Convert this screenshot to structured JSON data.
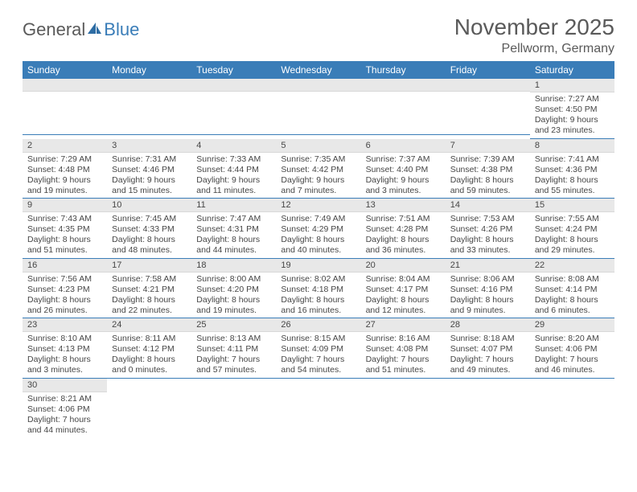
{
  "logo": {
    "text1": "General",
    "text2": "Blue"
  },
  "title": "November 2025",
  "location": "Pellworm, Germany",
  "colors": {
    "header_bg": "#3a7db8",
    "header_text": "#ffffff",
    "daynum_bg": "#e8e8e8",
    "row_divider": "#3a7db8",
    "body_text": "#464646",
    "page_bg": "#ffffff"
  },
  "typography": {
    "title_fontsize": 28,
    "location_fontsize": 16,
    "dayhdr_fontsize": 12,
    "cell_fontsize": 10.5
  },
  "weekdays": [
    "Sunday",
    "Monday",
    "Tuesday",
    "Wednesday",
    "Thursday",
    "Friday",
    "Saturday"
  ],
  "cells": [
    {
      "n": "",
      "sr": "",
      "ss": "",
      "dl": ""
    },
    {
      "n": "",
      "sr": "",
      "ss": "",
      "dl": ""
    },
    {
      "n": "",
      "sr": "",
      "ss": "",
      "dl": ""
    },
    {
      "n": "",
      "sr": "",
      "ss": "",
      "dl": ""
    },
    {
      "n": "",
      "sr": "",
      "ss": "",
      "dl": ""
    },
    {
      "n": "",
      "sr": "",
      "ss": "",
      "dl": ""
    },
    {
      "n": "1",
      "sr": "Sunrise: 7:27 AM",
      "ss": "Sunset: 4:50 PM",
      "dl": "Daylight: 9 hours and 23 minutes."
    },
    {
      "n": "2",
      "sr": "Sunrise: 7:29 AM",
      "ss": "Sunset: 4:48 PM",
      "dl": "Daylight: 9 hours and 19 minutes."
    },
    {
      "n": "3",
      "sr": "Sunrise: 7:31 AM",
      "ss": "Sunset: 4:46 PM",
      "dl": "Daylight: 9 hours and 15 minutes."
    },
    {
      "n": "4",
      "sr": "Sunrise: 7:33 AM",
      "ss": "Sunset: 4:44 PM",
      "dl": "Daylight: 9 hours and 11 minutes."
    },
    {
      "n": "5",
      "sr": "Sunrise: 7:35 AM",
      "ss": "Sunset: 4:42 PM",
      "dl": "Daylight: 9 hours and 7 minutes."
    },
    {
      "n": "6",
      "sr": "Sunrise: 7:37 AM",
      "ss": "Sunset: 4:40 PM",
      "dl": "Daylight: 9 hours and 3 minutes."
    },
    {
      "n": "7",
      "sr": "Sunrise: 7:39 AM",
      "ss": "Sunset: 4:38 PM",
      "dl": "Daylight: 8 hours and 59 minutes."
    },
    {
      "n": "8",
      "sr": "Sunrise: 7:41 AM",
      "ss": "Sunset: 4:36 PM",
      "dl": "Daylight: 8 hours and 55 minutes."
    },
    {
      "n": "9",
      "sr": "Sunrise: 7:43 AM",
      "ss": "Sunset: 4:35 PM",
      "dl": "Daylight: 8 hours and 51 minutes."
    },
    {
      "n": "10",
      "sr": "Sunrise: 7:45 AM",
      "ss": "Sunset: 4:33 PM",
      "dl": "Daylight: 8 hours and 48 minutes."
    },
    {
      "n": "11",
      "sr": "Sunrise: 7:47 AM",
      "ss": "Sunset: 4:31 PM",
      "dl": "Daylight: 8 hours and 44 minutes."
    },
    {
      "n": "12",
      "sr": "Sunrise: 7:49 AM",
      "ss": "Sunset: 4:29 PM",
      "dl": "Daylight: 8 hours and 40 minutes."
    },
    {
      "n": "13",
      "sr": "Sunrise: 7:51 AM",
      "ss": "Sunset: 4:28 PM",
      "dl": "Daylight: 8 hours and 36 minutes."
    },
    {
      "n": "14",
      "sr": "Sunrise: 7:53 AM",
      "ss": "Sunset: 4:26 PM",
      "dl": "Daylight: 8 hours and 33 minutes."
    },
    {
      "n": "15",
      "sr": "Sunrise: 7:55 AM",
      "ss": "Sunset: 4:24 PM",
      "dl": "Daylight: 8 hours and 29 minutes."
    },
    {
      "n": "16",
      "sr": "Sunrise: 7:56 AM",
      "ss": "Sunset: 4:23 PM",
      "dl": "Daylight: 8 hours and 26 minutes."
    },
    {
      "n": "17",
      "sr": "Sunrise: 7:58 AM",
      "ss": "Sunset: 4:21 PM",
      "dl": "Daylight: 8 hours and 22 minutes."
    },
    {
      "n": "18",
      "sr": "Sunrise: 8:00 AM",
      "ss": "Sunset: 4:20 PM",
      "dl": "Daylight: 8 hours and 19 minutes."
    },
    {
      "n": "19",
      "sr": "Sunrise: 8:02 AM",
      "ss": "Sunset: 4:18 PM",
      "dl": "Daylight: 8 hours and 16 minutes."
    },
    {
      "n": "20",
      "sr": "Sunrise: 8:04 AM",
      "ss": "Sunset: 4:17 PM",
      "dl": "Daylight: 8 hours and 12 minutes."
    },
    {
      "n": "21",
      "sr": "Sunrise: 8:06 AM",
      "ss": "Sunset: 4:16 PM",
      "dl": "Daylight: 8 hours and 9 minutes."
    },
    {
      "n": "22",
      "sr": "Sunrise: 8:08 AM",
      "ss": "Sunset: 4:14 PM",
      "dl": "Daylight: 8 hours and 6 minutes."
    },
    {
      "n": "23",
      "sr": "Sunrise: 8:10 AM",
      "ss": "Sunset: 4:13 PM",
      "dl": "Daylight: 8 hours and 3 minutes."
    },
    {
      "n": "24",
      "sr": "Sunrise: 8:11 AM",
      "ss": "Sunset: 4:12 PM",
      "dl": "Daylight: 8 hours and 0 minutes."
    },
    {
      "n": "25",
      "sr": "Sunrise: 8:13 AM",
      "ss": "Sunset: 4:11 PM",
      "dl": "Daylight: 7 hours and 57 minutes."
    },
    {
      "n": "26",
      "sr": "Sunrise: 8:15 AM",
      "ss": "Sunset: 4:09 PM",
      "dl": "Daylight: 7 hours and 54 minutes."
    },
    {
      "n": "27",
      "sr": "Sunrise: 8:16 AM",
      "ss": "Sunset: 4:08 PM",
      "dl": "Daylight: 7 hours and 51 minutes."
    },
    {
      "n": "28",
      "sr": "Sunrise: 8:18 AM",
      "ss": "Sunset: 4:07 PM",
      "dl": "Daylight: 7 hours and 49 minutes."
    },
    {
      "n": "29",
      "sr": "Sunrise: 8:20 AM",
      "ss": "Sunset: 4:06 PM",
      "dl": "Daylight: 7 hours and 46 minutes."
    },
    {
      "n": "30",
      "sr": "Sunrise: 8:21 AM",
      "ss": "Sunset: 4:06 PM",
      "dl": "Daylight: 7 hours and 44 minutes."
    },
    {
      "n": "",
      "sr": "",
      "ss": "",
      "dl": ""
    },
    {
      "n": "",
      "sr": "",
      "ss": "",
      "dl": ""
    },
    {
      "n": "",
      "sr": "",
      "ss": "",
      "dl": ""
    },
    {
      "n": "",
      "sr": "",
      "ss": "",
      "dl": ""
    },
    {
      "n": "",
      "sr": "",
      "ss": "",
      "dl": ""
    },
    {
      "n": "",
      "sr": "",
      "ss": "",
      "dl": ""
    }
  ]
}
